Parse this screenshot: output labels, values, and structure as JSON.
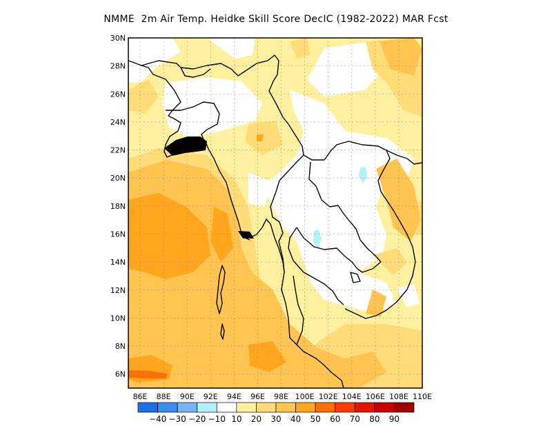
{
  "title": "NMME  2m Air Temp. Heidke Skill Score DecIC (1982-2022) MAR Fcst",
  "map": {
    "lon_range": [
      85,
      110
    ],
    "lat_range": [
      5,
      30
    ],
    "lon_ticks": [
      "86E",
      "88E",
      "90E",
      "92E",
      "94E",
      "96E",
      "98E",
      "100E",
      "102E",
      "104E",
      "106E",
      "108E",
      "110E"
    ],
    "lat_ticks": [
      "6N",
      "8N",
      "10N",
      "12N",
      "14N",
      "16N",
      "18N",
      "20N",
      "22N",
      "24N",
      "26N",
      "28N",
      "30N"
    ],
    "gridlines": "dotted"
  },
  "colorbar": {
    "colors": [
      "#1e6ee6",
      "#3c8cf0",
      "#78b4f0",
      "#b4f0fa",
      "#ffffff",
      "#fff0a0",
      "#ffdc78",
      "#ffc350",
      "#ffa51e",
      "#ff6e00",
      "#ff3c00",
      "#e61400",
      "#c80000",
      "#a00000"
    ],
    "labels": [
      "-40",
      "-30",
      "-20",
      "-10",
      "10",
      "20",
      "30",
      "40",
      "50",
      "60",
      "70",
      "80",
      "90"
    ]
  }
}
